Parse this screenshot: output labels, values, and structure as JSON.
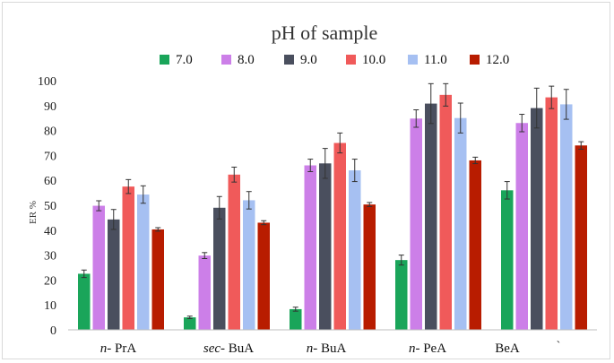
{
  "chart_data": {
    "type": "bar",
    "title": "pH of sample",
    "ylabel": "ER %",
    "xlabel": "",
    "ylim": [
      0,
      100
    ],
    "yticks": [
      0,
      10,
      20,
      30,
      40,
      50,
      60,
      70,
      80,
      90,
      100
    ],
    "gridlines": false,
    "legend_position": "top",
    "categories": [
      {
        "prefix": "n",
        "rest": "- PrA"
      },
      {
        "prefix": "sec",
        "rest": "- BuA"
      },
      {
        "prefix": "n",
        "rest": "- BuA"
      },
      {
        "prefix": "n",
        "rest": "- PeA"
      },
      {
        "prefix": "",
        "rest": "BeA"
      }
    ],
    "trailing_mark": "`",
    "series": [
      {
        "name": "7.0",
        "color": "#1aa55a",
        "values": [
          22.5,
          5.0,
          8.3,
          28.0,
          56.0
        ],
        "errors": [
          1.5,
          0.5,
          0.8,
          2.0,
          3.5
        ]
      },
      {
        "name": "8.0",
        "color": "#cc7fe8",
        "values": [
          49.8,
          29.8,
          66.0,
          84.8,
          83.0
        ],
        "errors": [
          2.0,
          1.2,
          2.5,
          3.5,
          3.5
        ]
      },
      {
        "name": "9.0",
        "color": "#4a4f5e",
        "values": [
          44.3,
          49.0,
          66.8,
          90.8,
          89.0
        ],
        "errors": [
          4.0,
          4.5,
          6.0,
          8.0,
          8.0
        ]
      },
      {
        "name": "10.0",
        "color": "#f05a5a",
        "values": [
          57.5,
          62.3,
          75.0,
          94.3,
          93.3
        ],
        "errors": [
          2.8,
          3.0,
          4.0,
          4.5,
          4.5
        ]
      },
      {
        "name": "11.0",
        "color": "#a6c0f2",
        "values": [
          54.3,
          52.0,
          64.0,
          85.0,
          90.5
        ],
        "errors": [
          3.5,
          3.5,
          4.5,
          6.0,
          6.0
        ]
      },
      {
        "name": "12.0",
        "color": "#b81c00",
        "values": [
          40.3,
          43.0,
          50.3,
          68.0,
          74.0
        ],
        "errors": [
          0.7,
          0.8,
          0.8,
          1.3,
          1.5
        ]
      }
    ]
  }
}
